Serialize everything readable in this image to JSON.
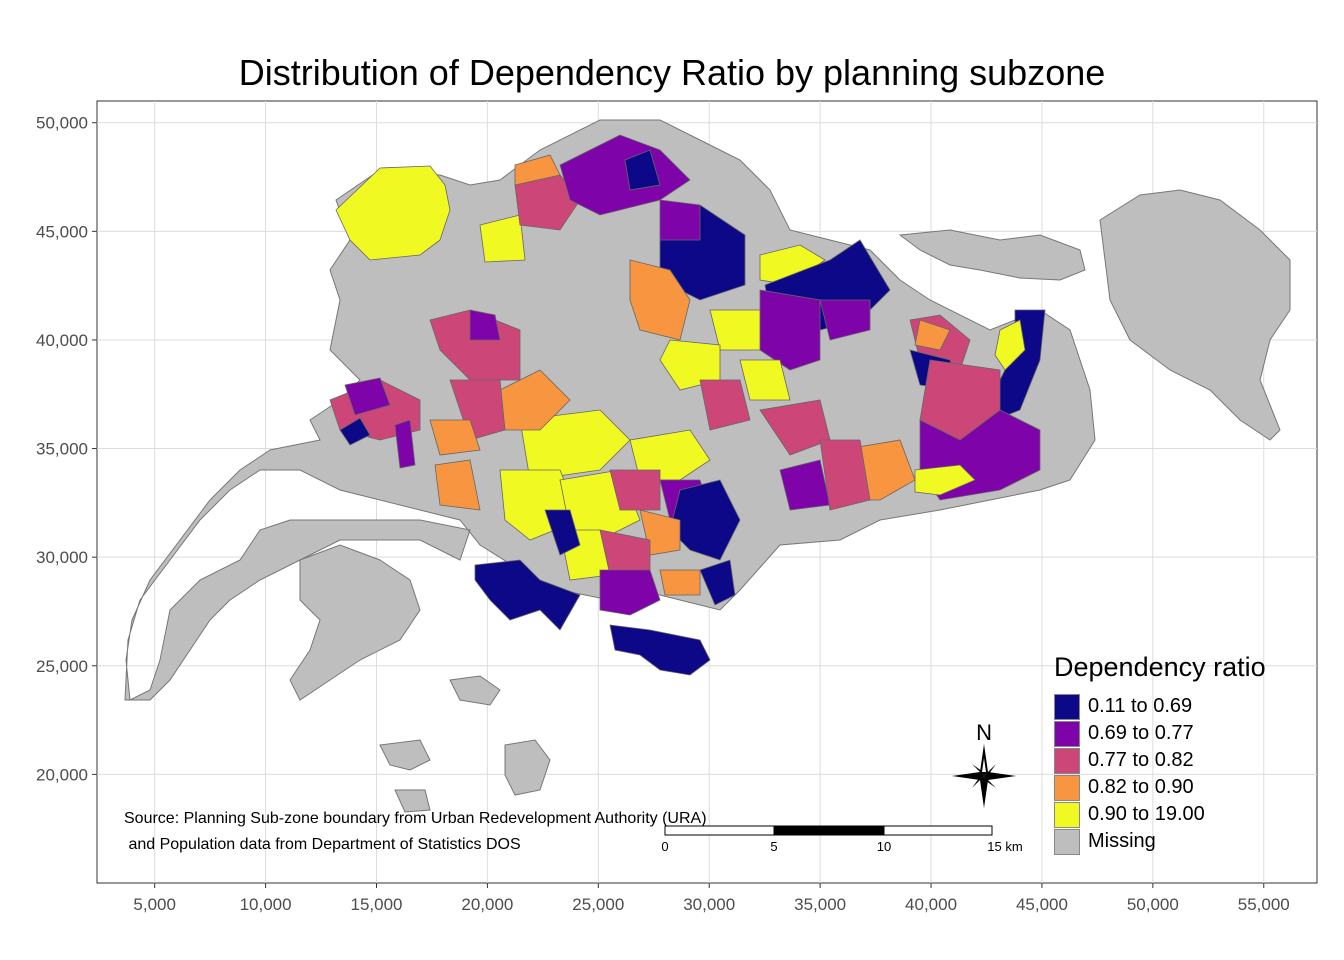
{
  "title": "Distribution of Dependency Ratio by planning subzone",
  "axes": {
    "x_ticks": [
      "5,000",
      "10,000",
      "15,000",
      "20,000",
      "25,000",
      "30,000",
      "35,000",
      "40,000",
      "45,000",
      "50,000",
      "55,000"
    ],
    "y_ticks": [
      "50,000",
      "45,000",
      "40,000",
      "35,000",
      "30,000",
      "25,000",
      "20,000"
    ],
    "x_values": [
      5000,
      10000,
      15000,
      20000,
      25000,
      30000,
      35000,
      40000,
      45000,
      50000,
      55000
    ],
    "y_values": [
      50000,
      45000,
      40000,
      35000,
      30000,
      25000,
      20000
    ],
    "xlim": [
      2400,
      57400
    ],
    "ylim": [
      15000,
      51000
    ],
    "grid": true
  },
  "legend": {
    "title": "Dependency ratio",
    "placement": "bottom-right",
    "items": [
      {
        "label": "0.11 to 0.69",
        "color": "#0d0887"
      },
      {
        "label": "0.69 to 0.77",
        "color": "#7e03a8"
      },
      {
        "label": "0.77 to 0.82",
        "color": "#cc4778"
      },
      {
        "label": "0.82 to 0.90",
        "color": "#f89540"
      },
      {
        "label": "0.90 to 19.00",
        "color": "#f0f921"
      },
      {
        "label": "Missing",
        "color": "#bebebe"
      }
    ]
  },
  "source": {
    "line1": "Source: Planning Sub-zone boundary from Urban Redevelopment Authority (URA)",
    "line2": " and Population data from Department of Statistics DOS"
  },
  "compass": {
    "label": "N",
    "icon": "compass-rose-icon"
  },
  "scale_bar": {
    "ticks": [
      "0",
      "5",
      "10",
      "15 km"
    ]
  }
}
